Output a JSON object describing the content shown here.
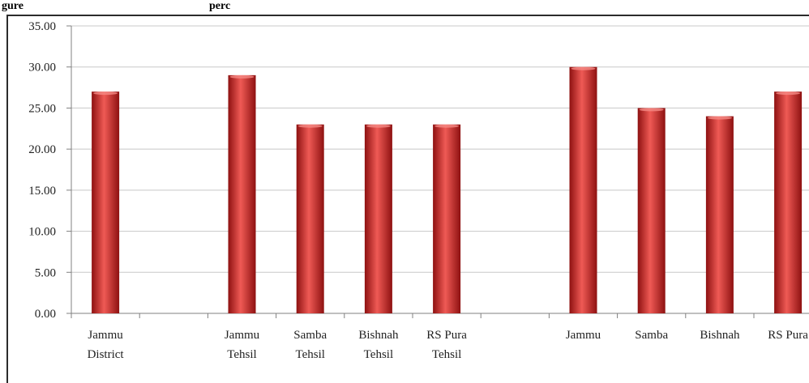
{
  "caption": {
    "visible_text": "gure ... perc...",
    "left_fragment": "gure",
    "right_fragment": "perc"
  },
  "chart_data": {
    "type": "bar",
    "categories": [
      [
        "Jammu",
        "District"
      ],
      [
        "",
        ""
      ],
      [
        "Jammu",
        "Tehsil"
      ],
      [
        "Samba",
        "Tehsil"
      ],
      [
        "Bishnah",
        "Tehsil"
      ],
      [
        "RS Pura",
        "Tehsil"
      ],
      [
        "",
        ""
      ],
      [
        "Jammu",
        ""
      ],
      [
        "Samba",
        ""
      ],
      [
        "Bishnah",
        ""
      ],
      [
        "RS Pura",
        ""
      ]
    ],
    "values": [
      27,
      null,
      29,
      23,
      23,
      23,
      null,
      30,
      25,
      24,
      27
    ],
    "ylim": [
      0,
      35
    ],
    "yticks": [
      "0.00",
      "5.00",
      "10.00",
      "15.00",
      "20.00",
      "25.00",
      "30.00",
      "35.00"
    ],
    "title": "",
    "xlabel": "",
    "ylabel": "",
    "grid": true,
    "legend": "none",
    "colors": {
      "bar_light": "#ef5a55",
      "bar_mid": "#d52a2a",
      "bar_dark": "#8e1111",
      "grid": "#c8c8c8",
      "axis": "#808080"
    }
  }
}
